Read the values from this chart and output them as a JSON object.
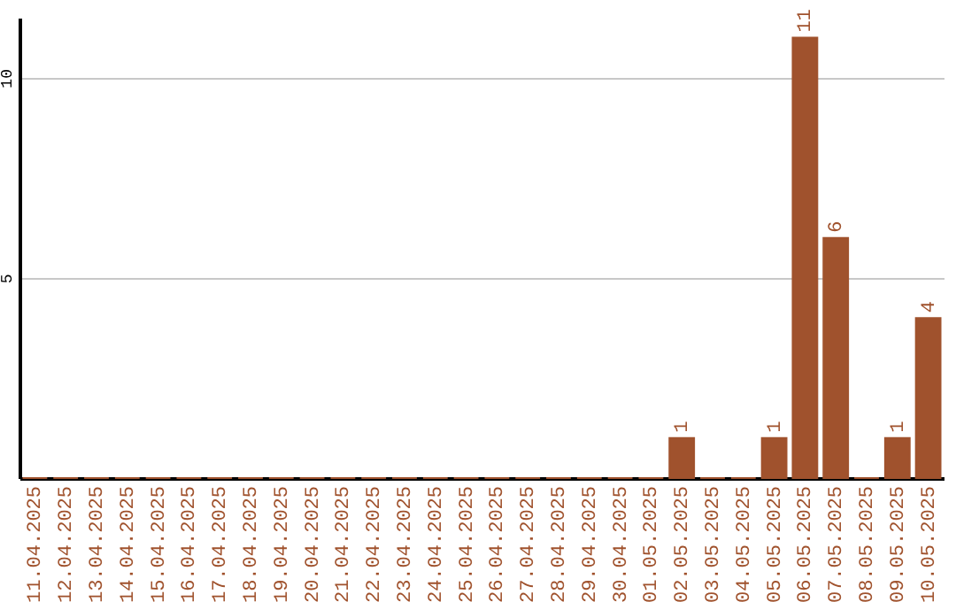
{
  "chart_data": {
    "type": "bar",
    "categories": [
      "11.04.2025",
      "12.04.2025",
      "13.04.2025",
      "14.04.2025",
      "15.04.2025",
      "16.04.2025",
      "17.04.2025",
      "18.04.2025",
      "19.04.2025",
      "20.04.2025",
      "21.04.2025",
      "22.04.2025",
      "23.04.2025",
      "24.04.2025",
      "25.04.2025",
      "26.04.2025",
      "27.04.2025",
      "28.04.2025",
      "29.04.2025",
      "30.04.2025",
      "01.05.2025",
      "02.05.2025",
      "03.05.2025",
      "04.05.2025",
      "05.05.2025",
      "06.05.2025",
      "07.05.2025",
      "08.05.2025",
      "09.05.2025",
      "10.05.2025"
    ],
    "values": [
      0,
      0,
      0,
      0,
      0,
      0,
      0,
      0,
      0,
      0,
      0,
      0,
      0,
      0,
      0,
      0,
      0,
      0,
      0,
      0,
      0,
      1,
      0,
      0,
      1,
      11,
      6,
      0,
      1,
      4
    ],
    "value_labels": [
      null,
      null,
      null,
      null,
      null,
      null,
      null,
      null,
      null,
      null,
      null,
      null,
      null,
      null,
      null,
      null,
      null,
      null,
      null,
      null,
      null,
      "1",
      null,
      null,
      "1",
      "11",
      "6",
      null,
      "1",
      "4"
    ],
    "color": "#a0522d",
    "ylim": [
      0,
      11.5
    ],
    "yticks": [
      5,
      10
    ],
    "grid": "y"
  }
}
